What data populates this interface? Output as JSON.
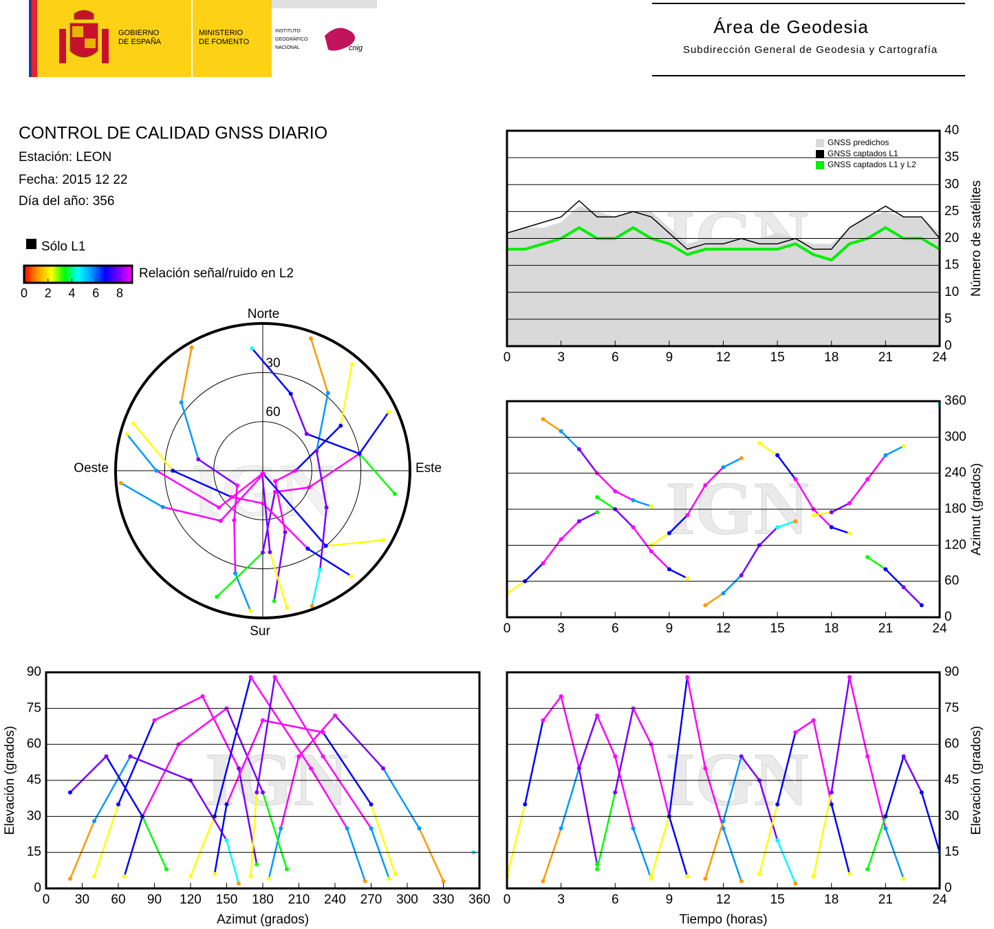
{
  "header": {
    "gobierno": [
      "GOBIERNO",
      "DE ESPAÑA"
    ],
    "ministerio": [
      "MINISTERIO",
      "DE FOMENTO"
    ],
    "instituto": [
      "INSTITUTO",
      "GEOGRÁFICO",
      "NACIONAL"
    ],
    "cnig": "cnig",
    "area": "Área de Geodesia",
    "subdireccion": "Subdirección General de Geodesia y Cartografía"
  },
  "report": {
    "title": "CONTROL DE CALIDAD GNSS DIARIO",
    "station": "Estación: LEON",
    "date": "Fecha: 2015 12 22",
    "doy": "Día del año: 356"
  },
  "legend": {
    "l1_only": "Sólo L1",
    "snr_label": "Relación señal/ruido en L2",
    "scale_ticks": [
      0,
      2,
      4,
      6,
      8
    ],
    "colors": [
      "#ff0000",
      "#ff9900",
      "#ffff00",
      "#00ff00",
      "#00ffff",
      "#0099ff",
      "#0000ff",
      "#7a00ff",
      "#ff00ff"
    ]
  },
  "chart_data": [
    {
      "type": "line",
      "watermark": "IGN",
      "ylabel": "Número de satélites",
      "x": [
        0,
        1,
        2,
        3,
        4,
        5,
        6,
        7,
        8,
        9,
        10,
        11,
        12,
        13,
        14,
        15,
        16,
        17,
        18,
        19,
        20,
        21,
        22,
        23,
        24
      ],
      "xlim": [
        0,
        24
      ],
      "xticks": [
        0,
        3,
        6,
        9,
        12,
        15,
        18,
        21,
        24
      ],
      "ylim": [
        0,
        40
      ],
      "yticks": [
        0,
        5,
        10,
        15,
        20,
        25,
        30,
        35,
        40
      ],
      "grid": true,
      "series": [
        {
          "name": "GNSS predichos",
          "color": "#d9d9d9",
          "style": "area",
          "values": [
            21,
            22,
            22,
            23,
            26,
            25,
            24,
            25,
            25,
            22,
            19,
            20,
            20,
            20,
            20,
            21,
            20,
            19,
            19,
            22,
            24,
            25,
            24,
            24,
            21
          ]
        },
        {
          "name": "GNSS captados L1",
          "color": "#000000",
          "values": [
            21,
            22,
            23,
            24,
            27,
            24,
            24,
            25,
            24,
            21,
            18,
            19,
            19,
            20,
            19,
            19,
            20,
            18,
            18,
            22,
            24,
            26,
            24,
            24,
            20
          ]
        },
        {
          "name": "GNSS captados L1 y L2",
          "color": "#00ee00",
          "values": [
            18,
            18,
            19,
            20,
            22,
            20,
            20,
            22,
            20,
            19,
            17,
            18,
            18,
            18,
            18,
            18,
            19,
            17,
            16,
            19,
            20,
            22,
            20,
            20,
            18
          ]
        }
      ]
    },
    {
      "type": "polar",
      "watermark": "IGN",
      "north": "Norte",
      "south": "Sur",
      "east": "Este",
      "west": "Oeste",
      "rlim": [
        90,
        0
      ],
      "rticks": [
        30,
        60
      ],
      "passes": [
        {
          "azimuth": [
            40,
            60,
            90,
            130,
            160,
            175
          ],
          "elevation": [
            5,
            35,
            70,
            80,
            50,
            10
          ],
          "snr": [
            2,
            6,
            8,
            8,
            7,
            3
          ]
        },
        {
          "azimuth": [
            330,
            310,
            280,
            240,
            210,
            195,
            185
          ],
          "elevation": [
            3,
            25,
            50,
            72,
            55,
            25,
            4
          ],
          "snr": [
            1,
            5,
            7,
            8,
            8,
            5,
            2
          ]
        },
        {
          "azimuth": [
            200,
            180,
            150,
            110,
            80,
            65
          ],
          "elevation": [
            8,
            40,
            75,
            60,
            30,
            5
          ],
          "snr": [
            3,
            7,
            8,
            8,
            6,
            2
          ]
        },
        {
          "azimuth": [
            120,
            140,
            170,
            220,
            250,
            265
          ],
          "elevation": [
            5,
            30,
            88,
            50,
            25,
            3
          ],
          "snr": [
            2,
            6,
            8,
            8,
            5,
            1
          ]
        },
        {
          "azimuth": [
            20,
            40,
            70,
            120,
            150,
            160
          ],
          "elevation": [
            4,
            28,
            55,
            45,
            20,
            2
          ],
          "snr": [
            1,
            5,
            7,
            7,
            4,
            1
          ]
        },
        {
          "azimuth": [
            290,
            270,
            230,
            180,
            150,
            140
          ],
          "elevation": [
            6,
            35,
            65,
            70,
            35,
            6
          ],
          "snr": [
            2,
            6,
            8,
            8,
            6,
            2
          ]
        },
        {
          "azimuth": [
            170,
            175,
            190,
            230,
            270,
            285
          ],
          "elevation": [
            5,
            40,
            88,
            55,
            25,
            4
          ],
          "snr": [
            2,
            7,
            8,
            8,
            5,
            2
          ]
        },
        {
          "azimuth": [
            100,
            80,
            50,
            20,
            355
          ],
          "elevation": [
            8,
            30,
            55,
            40,
            15
          ],
          "snr": [
            3,
            6,
            7,
            6,
            4
          ]
        }
      ]
    },
    {
      "type": "track",
      "watermark": "IGN",
      "ylabel": "Azimut (grados)",
      "xlim": [
        0,
        24
      ],
      "xticks": [
        0,
        3,
        6,
        9,
        12,
        15,
        18,
        21,
        24
      ],
      "ylim": [
        0,
        360
      ],
      "yticks": [
        0,
        60,
        120,
        180,
        240,
        300,
        360
      ],
      "grid": true,
      "passes": [
        {
          "x": [
            0,
            1,
            2,
            3,
            4,
            5
          ],
          "y": [
            40,
            60,
            90,
            130,
            160,
            175
          ],
          "snr": [
            2,
            6,
            8,
            8,
            7,
            3
          ]
        },
        {
          "x": [
            2,
            3,
            4,
            5,
            6,
            7,
            8
          ],
          "y": [
            330,
            310,
            280,
            240,
            210,
            195,
            185
          ],
          "snr": [
            1,
            5,
            7,
            8,
            8,
            5,
            2
          ]
        },
        {
          "x": [
            5,
            6,
            7,
            8,
            9,
            10
          ],
          "y": [
            200,
            180,
            150,
            110,
            80,
            65
          ],
          "snr": [
            3,
            7,
            8,
            8,
            6,
            2
          ]
        },
        {
          "x": [
            8,
            9,
            10,
            11,
            12,
            13
          ],
          "y": [
            120,
            140,
            170,
            220,
            250,
            265
          ],
          "snr": [
            2,
            6,
            8,
            8,
            5,
            1
          ]
        },
        {
          "x": [
            11,
            12,
            13,
            14,
            15,
            16
          ],
          "y": [
            20,
            40,
            70,
            120,
            150,
            160
          ],
          "snr": [
            1,
            5,
            7,
            7,
            4,
            1
          ]
        },
        {
          "x": [
            14,
            15,
            16,
            17,
            18,
            19
          ],
          "y": [
            290,
            270,
            230,
            180,
            150,
            140
          ],
          "snr": [
            2,
            6,
            8,
            8,
            6,
            2
          ]
        },
        {
          "x": [
            17,
            18,
            19,
            20,
            21,
            22
          ],
          "y": [
            170,
            175,
            190,
            230,
            270,
            285
          ],
          "snr": [
            2,
            7,
            8,
            8,
            5,
            2
          ]
        },
        {
          "x": [
            20,
            21,
            22,
            23,
            24
          ],
          "y": [
            100,
            80,
            50,
            20,
            355
          ],
          "snr": [
            3,
            6,
            7,
            6,
            4
          ]
        }
      ]
    },
    {
      "type": "track",
      "watermark": "IGN",
      "xlabel": "Azimut (grados)",
      "ylabel": "Elevación (grados)",
      "xlim": [
        0,
        360
      ],
      "xticks": [
        0,
        30,
        60,
        90,
        120,
        150,
        180,
        210,
        240,
        270,
        300,
        330,
        360
      ],
      "ylim": [
        0,
        90
      ],
      "yticks": [
        0,
        15,
        30,
        45,
        60,
        75,
        90
      ],
      "grid": true,
      "passes": [
        {
          "x": [
            40,
            60,
            90,
            130,
            160,
            175
          ],
          "y": [
            5,
            35,
            70,
            80,
            50,
            10
          ],
          "snr": [
            2,
            6,
            8,
            8,
            7,
            3
          ]
        },
        {
          "x": [
            330,
            310,
            280,
            240,
            210,
            195,
            185
          ],
          "y": [
            3,
            25,
            50,
            72,
            55,
            25,
            4
          ],
          "snr": [
            1,
            5,
            7,
            8,
            8,
            5,
            2
          ]
        },
        {
          "x": [
            200,
            180,
            150,
            110,
            80,
            65
          ],
          "y": [
            8,
            40,
            75,
            60,
            30,
            5
          ],
          "snr": [
            3,
            7,
            8,
            8,
            6,
            2
          ]
        },
        {
          "x": [
            120,
            140,
            170,
            220,
            250,
            265
          ],
          "y": [
            5,
            30,
            88,
            50,
            25,
            3
          ],
          "snr": [
            2,
            6,
            8,
            8,
            5,
            1
          ]
        },
        {
          "x": [
            20,
            40,
            70,
            120,
            150,
            160
          ],
          "y": [
            4,
            28,
            55,
            45,
            20,
            2
          ],
          "snr": [
            1,
            5,
            7,
            7,
            4,
            1
          ]
        },
        {
          "x": [
            290,
            270,
            230,
            180,
            150,
            140
          ],
          "y": [
            6,
            35,
            65,
            70,
            35,
            6
          ],
          "snr": [
            2,
            6,
            8,
            8,
            6,
            2
          ]
        },
        {
          "x": [
            170,
            175,
            190,
            230,
            270,
            285
          ],
          "y": [
            5,
            40,
            88,
            55,
            25,
            4
          ],
          "snr": [
            2,
            7,
            8,
            8,
            5,
            2
          ]
        },
        {
          "x": [
            100,
            80,
            50,
            20,
            355
          ],
          "y": [
            8,
            30,
            55,
            40,
            15
          ],
          "snr": [
            3,
            6,
            7,
            6,
            4
          ]
        }
      ]
    },
    {
      "type": "track",
      "watermark": "IGN",
      "xlabel": "Tiempo (horas)",
      "ylabel": "Elevación (grados)",
      "xlim": [
        0,
        24
      ],
      "xticks": [
        0,
        3,
        6,
        9,
        12,
        15,
        18,
        21,
        24
      ],
      "ylim": [
        0,
        90
      ],
      "yticks": [
        0,
        15,
        30,
        45,
        60,
        75,
        90
      ],
      "grid": true,
      "passes": [
        {
          "x": [
            0,
            1,
            2,
            3,
            4,
            5
          ],
          "y": [
            5,
            35,
            70,
            80,
            50,
            10
          ],
          "snr": [
            2,
            6,
            8,
            8,
            7,
            3
          ]
        },
        {
          "x": [
            2,
            3,
            4,
            5,
            6,
            7,
            8
          ],
          "y": [
            3,
            25,
            50,
            72,
            55,
            25,
            4
          ],
          "snr": [
            1,
            5,
            7,
            8,
            8,
            5,
            2
          ]
        },
        {
          "x": [
            5,
            6,
            7,
            8,
            9,
            10
          ],
          "y": [
            8,
            40,
            75,
            60,
            30,
            5
          ],
          "snr": [
            3,
            7,
            8,
            8,
            6,
            2
          ]
        },
        {
          "x": [
            8,
            9,
            10,
            11,
            12,
            13
          ],
          "y": [
            5,
            30,
            88,
            50,
            25,
            3
          ],
          "snr": [
            2,
            6,
            8,
            8,
            5,
            1
          ]
        },
        {
          "x": [
            11,
            12,
            13,
            14,
            15,
            16
          ],
          "y": [
            4,
            28,
            55,
            45,
            20,
            2
          ],
          "snr": [
            1,
            5,
            7,
            7,
            4,
            1
          ]
        },
        {
          "x": [
            14,
            15,
            16,
            17,
            18,
            19
          ],
          "y": [
            6,
            35,
            65,
            70,
            35,
            6
          ],
          "snr": [
            2,
            6,
            8,
            8,
            6,
            2
          ]
        },
        {
          "x": [
            17,
            18,
            19,
            20,
            21,
            22
          ],
          "y": [
            5,
            40,
            88,
            55,
            25,
            4
          ],
          "snr": [
            2,
            7,
            8,
            8,
            5,
            2
          ]
        },
        {
          "x": [
            20,
            21,
            22,
            23,
            24
          ],
          "y": [
            8,
            30,
            55,
            40,
            15
          ],
          "snr": [
            3,
            6,
            7,
            6,
            4
          ]
        }
      ]
    }
  ]
}
